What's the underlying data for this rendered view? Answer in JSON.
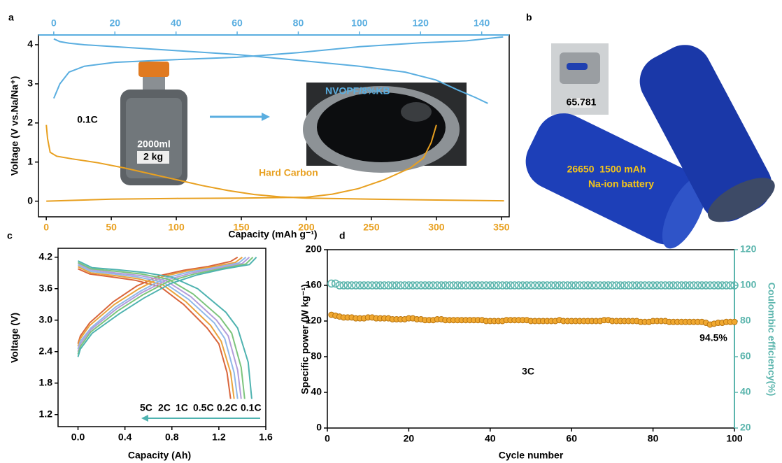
{
  "chart_data": [
    {
      "type": "line",
      "panel_label": "a",
      "xlabel": "Capacity (mAh g⁻¹)",
      "ylabel": "Voltage (V vs.Na/Na⁺)",
      "xlim": [
        -6,
        356
      ],
      "xticks": [
        0,
        50,
        100,
        150,
        200,
        250,
        300,
        350
      ],
      "x2lim": [
        -5,
        149
      ],
      "x2ticks": [
        0,
        20,
        40,
        60,
        80,
        100,
        120,
        140
      ],
      "ylim": [
        -0.4,
        4.25
      ],
      "yticks": [
        0,
        1,
        2,
        3,
        4
      ],
      "annotations": [
        "0.1C",
        "2000ml",
        "2 kg"
      ],
      "series": [
        {
          "name": "Hard Carbon",
          "color": "#e8a020",
          "x": [
            0,
            1,
            3,
            8,
            20,
            40,
            60,
            80,
            100,
            120,
            140,
            160,
            180,
            200,
            250,
            300,
            352,
            null,
            0,
            20,
            50,
            100,
            150,
            200,
            220,
            240,
            260,
            280,
            290,
            296,
            300
          ],
          "values": [
            1.95,
            1.6,
            1.25,
            1.15,
            1.08,
            0.98,
            0.85,
            0.7,
            0.55,
            0.4,
            0.27,
            0.17,
            0.11,
            0.08,
            0.05,
            0.03,
            0.01,
            null,
            0,
            0.02,
            0.05,
            0.07,
            0.08,
            0.1,
            0.18,
            0.32,
            0.55,
            0.85,
            1.1,
            1.5,
            1.95
          ]
        },
        {
          "name": "NVOPF/8%KB",
          "color": "#5aaee0",
          "axis": "x2",
          "x": [
            0,
            2,
            5,
            10,
            20,
            40,
            60,
            80,
            100,
            115,
            125,
            132,
            138,
            142,
            null,
            0,
            2,
            5,
            10,
            20,
            40,
            60,
            80,
            100,
            120,
            135,
            147
          ],
          "values": [
            4.15,
            4.08,
            4.04,
            4.0,
            3.95,
            3.85,
            3.75,
            3.6,
            3.45,
            3.3,
            3.1,
            2.85,
            2.65,
            2.5,
            null,
            2.63,
            3.0,
            3.3,
            3.45,
            3.55,
            3.62,
            3.68,
            3.8,
            3.95,
            4.05,
            4.1,
            4.2
          ]
        }
      ]
    },
    {
      "type": "line",
      "panel_label": "c",
      "xlabel": "Capacity (Ah)",
      "ylabel": "Voltage (V)",
      "xlim": [
        -0.17,
        1.6
      ],
      "xticks": [
        {
          "value": 0,
          "label": "0.0"
        },
        0.4,
        0.8,
        1.2,
        1.6
      ],
      "ylim": [
        0.97,
        4.37
      ],
      "yticks": [
        1.2,
        1.8,
        2.4,
        {
          "value": 3,
          "label": "3.0"
        },
        3.6,
        4.2
      ],
      "legend": "bottom-right",
      "series": [
        {
          "name": "5C",
          "color": "#d9653b",
          "x": [
            0,
            0.1,
            0.3,
            0.49,
            0.7,
            0.9,
            1.1,
            1.2,
            1.27,
            1.3,
            null,
            0,
            0.02,
            0.1,
            0.3,
            0.5,
            0.7,
            0.9,
            1.1,
            1.3,
            1.36
          ],
          "values": [
            3.98,
            3.88,
            3.82,
            3.76,
            3.64,
            3.3,
            2.85,
            2.55,
            2.0,
            1.5,
            null,
            2.55,
            2.7,
            2.95,
            3.35,
            3.65,
            3.85,
            3.95,
            4.02,
            4.12,
            4.2
          ]
        },
        {
          "name": "2C",
          "color": "#e8a33d",
          "x": [
            0,
            0.11,
            0.31,
            0.51,
            0.72,
            0.92,
            1.13,
            1.22,
            1.3,
            1.33,
            null,
            0,
            0.02,
            0.1,
            0.31,
            0.52,
            0.72,
            0.93,
            1.13,
            1.34,
            1.4
          ],
          "values": [
            4.02,
            3.9,
            3.85,
            3.79,
            3.68,
            3.35,
            2.9,
            2.6,
            2.0,
            1.5,
            null,
            2.5,
            2.65,
            2.9,
            3.3,
            3.6,
            3.83,
            3.94,
            4.01,
            4.1,
            4.2
          ]
        },
        {
          "name": "1C",
          "color": "#8fb8e8",
          "x": [
            0,
            0.11,
            0.31,
            0.52,
            0.73,
            0.94,
            1.16,
            1.25,
            1.33,
            1.36,
            null,
            0,
            0.02,
            0.11,
            0.32,
            0.53,
            0.74,
            0.95,
            1.16,
            1.37,
            1.43
          ],
          "values": [
            4.05,
            3.93,
            3.88,
            3.82,
            3.72,
            3.4,
            2.95,
            2.65,
            2.0,
            1.5,
            null,
            2.45,
            2.6,
            2.85,
            3.25,
            3.55,
            3.8,
            3.92,
            4.0,
            4.09,
            4.2
          ]
        },
        {
          "name": "0.5C",
          "color": "#b39ddb",
          "x": [
            0,
            0.11,
            0.32,
            0.53,
            0.75,
            0.96,
            1.18,
            1.28,
            1.36,
            1.39,
            null,
            0,
            0.02,
            0.11,
            0.33,
            0.54,
            0.76,
            0.97,
            1.18,
            1.4,
            1.46
          ],
          "values": [
            4.08,
            3.96,
            3.9,
            3.85,
            3.75,
            3.45,
            3.0,
            2.7,
            2.05,
            1.5,
            null,
            2.4,
            2.55,
            2.82,
            3.22,
            3.52,
            3.77,
            3.9,
            3.99,
            4.08,
            4.2
          ]
        },
        {
          "name": "0.2C",
          "color": "#7cc47c",
          "x": [
            0,
            0.11,
            0.33,
            0.54,
            0.77,
            0.98,
            1.21,
            1.31,
            1.39,
            1.42,
            null,
            0,
            0.02,
            0.11,
            0.34,
            0.55,
            0.77,
            0.99,
            1.21,
            1.43,
            1.49
          ],
          "values": [
            4.1,
            3.98,
            3.93,
            3.88,
            3.78,
            3.5,
            3.05,
            2.75,
            2.1,
            1.5,
            null,
            2.35,
            2.5,
            2.78,
            3.18,
            3.48,
            3.74,
            3.88,
            3.98,
            4.07,
            4.2
          ]
        },
        {
          "name": "0.1C",
          "color": "#4fb3b0",
          "x": [
            0,
            0.12,
            0.34,
            0.56,
            0.8,
            1.02,
            1.26,
            1.36,
            1.45,
            1.48,
            null,
            0,
            0.02,
            0.12,
            0.35,
            0.56,
            0.79,
            1.01,
            1.23,
            1.46,
            1.52
          ],
          "values": [
            4.13,
            4.0,
            3.96,
            3.91,
            3.82,
            3.6,
            3.15,
            2.85,
            2.2,
            1.5,
            null,
            2.3,
            2.45,
            2.75,
            3.12,
            3.42,
            3.7,
            3.86,
            3.97,
            4.06,
            4.2
          ]
        }
      ]
    },
    {
      "type": "scatter",
      "panel_label": "d",
      "xlabel": "Cycle number",
      "ylabel": "Specific power (W kg⁻¹)",
      "y2label": "Coulombic efficiency(%)",
      "xlim": [
        0,
        100
      ],
      "xticks": [
        0,
        20,
        40,
        60,
        80,
        100
      ],
      "ylim": [
        0,
        200
      ],
      "yticks": [
        0,
        40,
        80,
        120,
        160,
        200
      ],
      "y2lim": [
        20,
        120
      ],
      "y2ticks": [
        20,
        40,
        60,
        80,
        100,
        120
      ],
      "annotations": [
        "94.5%",
        "3C"
      ],
      "x": [
        1,
        2,
        3,
        4,
        5,
        6,
        7,
        8,
        9,
        10,
        11,
        12,
        13,
        14,
        15,
        16,
        17,
        18,
        19,
        20,
        21,
        22,
        23,
        24,
        25,
        26,
        27,
        28,
        29,
        30,
        31,
        32,
        33,
        34,
        35,
        36,
        37,
        38,
        39,
        40,
        41,
        42,
        43,
        44,
        45,
        46,
        47,
        48,
        49,
        50,
        51,
        52,
        53,
        54,
        55,
        56,
        57,
        58,
        59,
        60,
        61,
        62,
        63,
        64,
        65,
        66,
        67,
        68,
        69,
        70,
        71,
        72,
        73,
        74,
        75,
        76,
        77,
        78,
        79,
        80,
        81,
        82,
        83,
        84,
        85,
        86,
        87,
        88,
        89,
        90,
        91,
        92,
        93,
        94,
        95,
        96,
        97,
        98,
        99,
        100
      ],
      "series": [
        {
          "color": "#f0a830",
          "marker": "filled",
          "values": [
            127,
            126,
            125,
            124,
            124,
            124,
            123,
            123,
            123,
            124,
            124,
            123,
            123,
            123,
            123,
            122,
            122,
            122,
            122,
            123,
            123,
            122,
            122,
            121,
            121,
            121,
            122,
            122,
            121,
            121,
            121,
            121,
            121,
            121,
            121,
            121,
            121,
            121,
            120,
            120,
            120,
            120,
            120,
            121,
            121,
            121,
            121,
            121,
            121,
            120,
            120,
            120,
            120,
            120,
            120,
            120,
            121,
            120,
            120,
            120,
            120,
            120,
            120,
            120,
            120,
            120,
            120,
            121,
            121,
            120,
            120,
            120,
            120,
            120,
            120,
            120,
            119,
            119,
            119,
            120,
            120,
            120,
            120,
            119,
            119,
            119,
            119,
            119,
            119,
            119,
            119,
            119,
            118,
            116,
            117,
            118,
            118,
            119,
            119,
            119
          ]
        },
        {
          "color": "#5bb5ad",
          "marker": "open",
          "axis": "y2",
          "values": [
            101,
            101,
            100,
            100,
            100,
            100,
            100,
            100,
            100,
            100,
            100,
            100,
            100,
            100,
            100,
            100,
            100,
            100,
            100,
            100,
            100,
            100,
            100,
            100,
            100,
            100,
            100,
            100,
            100,
            100,
            100,
            100,
            100,
            100,
            100,
            100,
            100,
            100,
            100,
            100,
            100,
            100,
            100,
            100,
            100,
            100,
            100,
            100,
            100,
            100,
            100,
            100,
            100,
            100,
            100,
            100,
            100,
            100,
            100,
            100,
            100,
            100,
            100,
            100,
            100,
            100,
            100,
            100,
            100,
            100,
            100,
            100,
            100,
            100,
            100,
            100,
            100,
            100,
            100,
            100,
            100,
            100,
            100,
            100,
            100,
            100,
            100,
            100,
            100,
            100,
            100,
            100,
            100,
            100,
            100,
            100,
            100,
            100,
            100,
            100
          ]
        }
      ]
    }
  ],
  "photo_b": {
    "panel_label": "b",
    "scale_reading": "65.781",
    "battery_text": [
      "26650  1500 mAh",
      "Na-ion battery"
    ]
  }
}
